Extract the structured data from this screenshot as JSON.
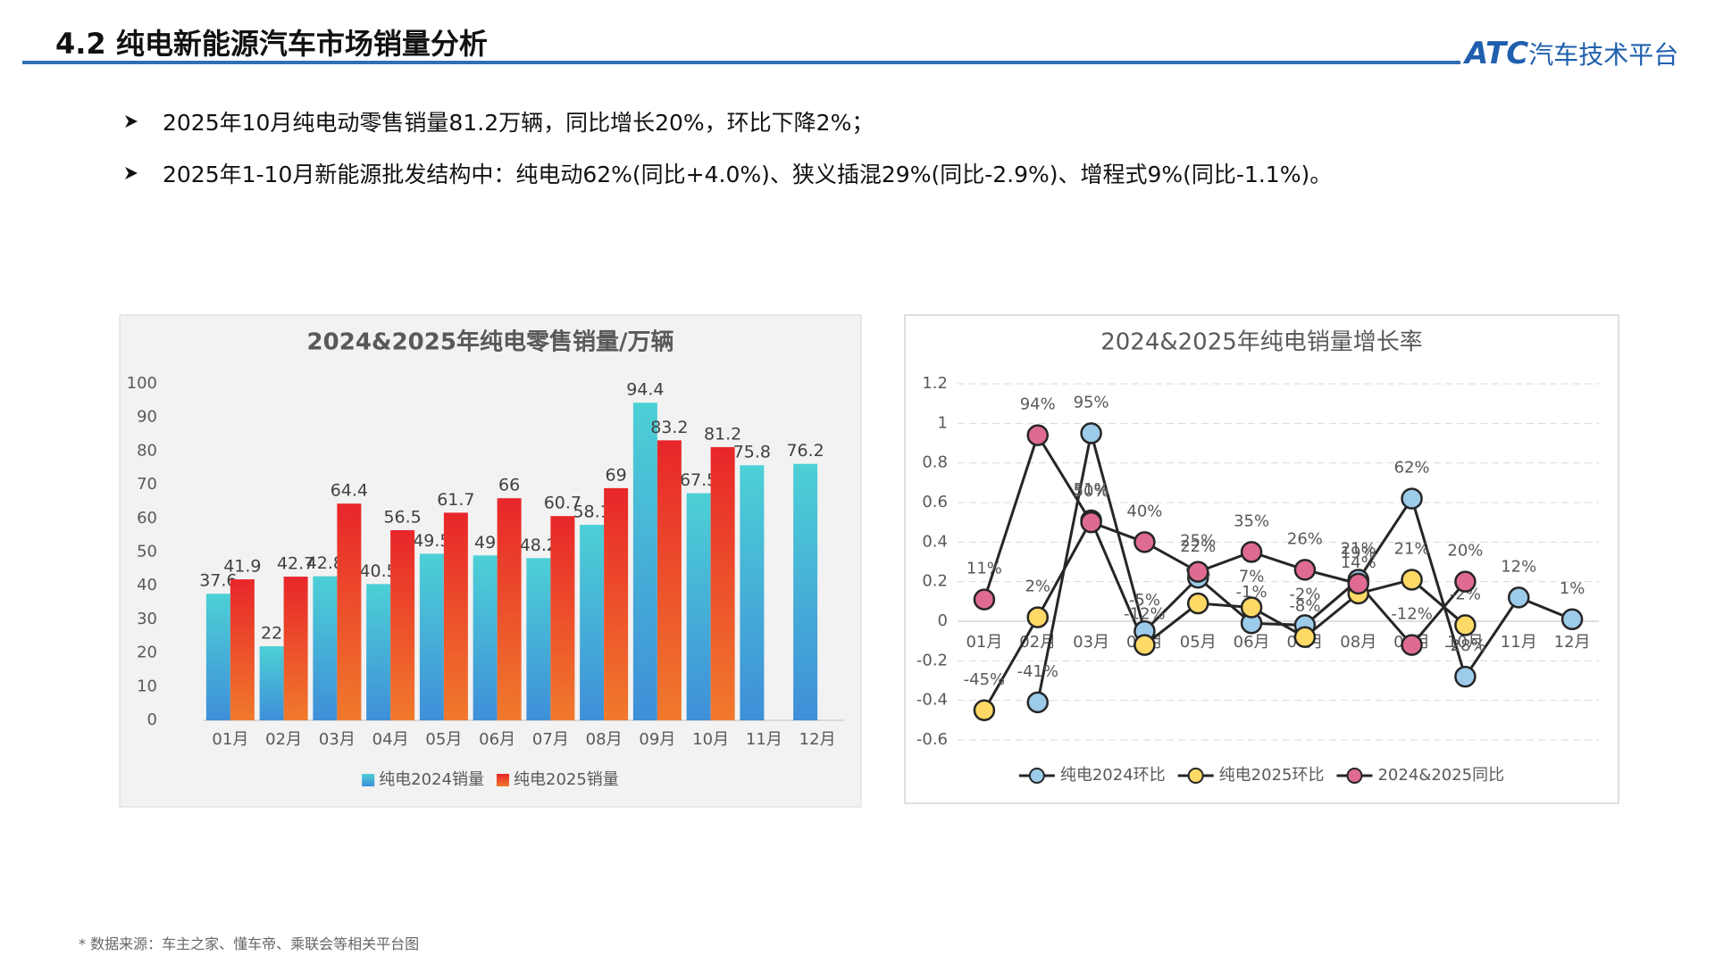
{
  "header": {
    "title": "4.2 纯电新能源汽车市场销量分析",
    "logo_brand": "ATC",
    "logo_name": "汽车技术平台"
  },
  "bullets": [
    "2025年10月纯电动零售销量81.2万辆，同比增长20%，环比下降2%；",
    "2025年1-10月新能源批发结构中：纯电动62%(同比+4.0%)、狭义插混29%(同比-2.9%)、增程式9%(同比-1.1%)。"
  ],
  "chart_data": [
    {
      "type": "bar",
      "title": "2024&2025年纯电零售销量/万辆",
      "categories": [
        "01月",
        "02月",
        "03月",
        "04月",
        "05月",
        "06月",
        "07月",
        "08月",
        "09月",
        "10月",
        "11月",
        "12月"
      ],
      "series": [
        {
          "name": "纯电2024销量",
          "color": "#4dd0d6",
          "values": [
            37.6,
            22,
            42.8,
            40.5,
            49.5,
            49,
            48.2,
            58.1,
            94.4,
            67.5,
            75.8,
            76.2
          ]
        },
        {
          "name": "纯电2025销量",
          "color": "#e8262a",
          "values": [
            41.9,
            42.7,
            64.4,
            56.5,
            61.7,
            66,
            60.7,
            69,
            83.2,
            81.2,
            null,
            null
          ]
        }
      ],
      "ylim": [
        0,
        100
      ],
      "yticks": [
        0,
        10,
        20,
        30,
        40,
        50,
        60,
        70,
        80,
        90,
        100
      ],
      "grid": false,
      "legend": "bottom"
    },
    {
      "type": "line",
      "title": "2024&2025年纯电销量增长率",
      "categories": [
        "01月",
        "02月",
        "03月",
        "04月",
        "05月",
        "06月",
        "07月",
        "08月",
        "09月",
        "10月",
        "11月",
        "12月"
      ],
      "series": [
        {
          "name": "纯电2024环比",
          "color": "#9dcbea",
          "values": [
            null,
            -0.41,
            0.95,
            -0.05,
            0.22,
            -0.01,
            -0.02,
            0.21,
            0.62,
            -0.28,
            0.12,
            0.01
          ],
          "value_labels": [
            null,
            "-41%",
            "95%",
            "-5%",
            "22%",
            "-1%",
            "-2%",
            "21%",
            "62%",
            "-28%",
            "12%",
            "1%"
          ]
        },
        {
          "name": "纯电2025环比",
          "color": "#ffd966",
          "values": [
            -0.45,
            0.02,
            0.51,
            -0.12,
            0.09,
            0.07,
            -0.08,
            0.14,
            0.21,
            -0.02,
            null,
            null
          ],
          "value_labels": [
            "-45%",
            "2%",
            "51%",
            "-12%",
            "9%",
            "7%",
            "-8%",
            "14%",
            "21%",
            "-2%",
            null,
            null
          ]
        },
        {
          "name": "2024&2025同比",
          "color": "#e06b92",
          "values": [
            0.11,
            0.94,
            0.5,
            0.4,
            0.25,
            0.35,
            0.26,
            0.19,
            -0.12,
            0.2,
            null,
            null
          ],
          "value_labels": [
            "11%",
            "94%",
            "50%",
            "40%",
            "25%",
            "35%",
            "26%",
            "19%",
            "-12%",
            "20%",
            null,
            null
          ]
        }
      ],
      "ylim": [
        -0.6,
        1.2
      ],
      "yticks": [
        -0.6,
        -0.4,
        -0.2,
        0,
        0.2,
        0.4,
        0.6,
        0.8,
        1,
        1.2
      ],
      "grid": true,
      "legend": "bottom"
    }
  ],
  "footnote": "* 数据来源：车主之家、懂车帝、乘联会等相关平台图"
}
